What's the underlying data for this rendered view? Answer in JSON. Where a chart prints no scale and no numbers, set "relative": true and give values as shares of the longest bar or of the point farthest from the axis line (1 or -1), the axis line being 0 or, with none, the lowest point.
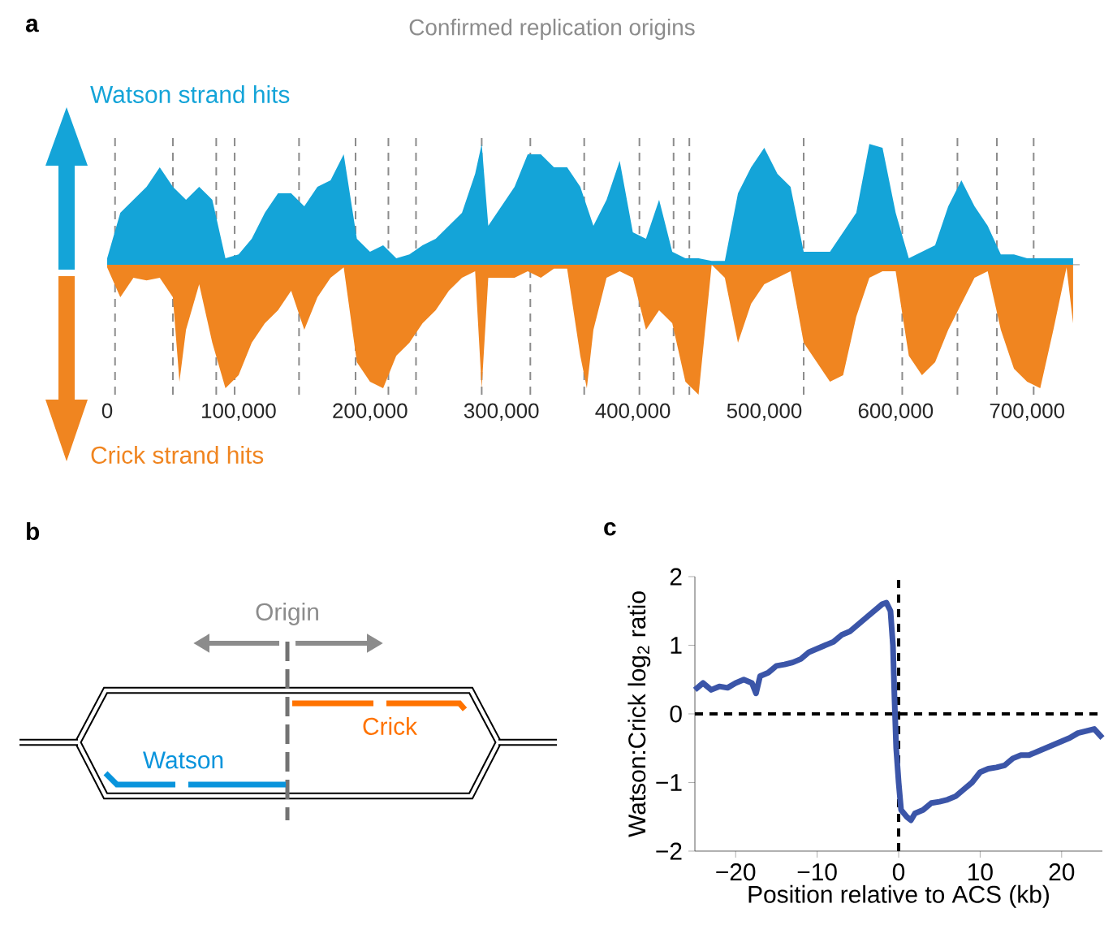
{
  "chart_data": [
    {
      "type": "area",
      "title": "a",
      "relative": true,
      "tick_labels": "x",
      "annotations": [
        "Confirmed replication origins"
      ],
      "xlim": [
        0,
        740000
      ],
      "xticks": [
        0,
        {
          "value": 100000,
          "label": "100,000"
        },
        {
          "value": 200000,
          "label": "200,000"
        },
        {
          "value": 300000,
          "label": "300,000"
        },
        {
          "value": 400000,
          "label": "400,000"
        },
        {
          "value": 500000,
          "label": "500,000"
        },
        {
          "value": 600000,
          "label": "600,000"
        },
        {
          "value": 700000,
          "label": "700,000"
        }
      ],
      "ref_lines": [
        {
          "axis": "x",
          "value": 6000,
          "color": "#8c8c8c",
          "line_style": "dashed"
        },
        {
          "axis": "x",
          "value": 50000,
          "color": "#8c8c8c",
          "line_style": "dashed"
        },
        {
          "axis": "x",
          "value": 83000,
          "color": "#8c8c8c",
          "line_style": "dashed"
        },
        {
          "axis": "x",
          "value": 97000,
          "color": "#8c8c8c",
          "line_style": "dashed"
        },
        {
          "axis": "x",
          "value": 146000,
          "color": "#8c8c8c",
          "line_style": "dashed"
        },
        {
          "axis": "x",
          "value": 189000,
          "color": "#8c8c8c",
          "line_style": "dashed"
        },
        {
          "axis": "x",
          "value": 214000,
          "color": "#8c8c8c",
          "line_style": "dashed"
        },
        {
          "axis": "x",
          "value": 235000,
          "color": "#8c8c8c",
          "line_style": "dashed"
        },
        {
          "axis": "x",
          "value": 285000,
          "color": "#8c8c8c",
          "line_style": "dashed"
        },
        {
          "axis": "x",
          "value": 322000,
          "color": "#8c8c8c",
          "line_style": "dashed"
        },
        {
          "axis": "x",
          "value": 363000,
          "color": "#8c8c8c",
          "line_style": "dashed"
        },
        {
          "axis": "x",
          "value": 405000,
          "color": "#8c8c8c",
          "line_style": "dashed"
        },
        {
          "axis": "x",
          "value": 431000,
          "color": "#8c8c8c",
          "line_style": "dashed"
        },
        {
          "axis": "x",
          "value": 443000,
          "color": "#8c8c8c",
          "line_style": "dashed"
        },
        {
          "axis": "x",
          "value": 530000,
          "color": "#8c8c8c",
          "line_style": "dashed"
        },
        {
          "axis": "x",
          "value": 605000,
          "color": "#8c8c8c",
          "line_style": "dashed"
        },
        {
          "axis": "x",
          "value": 647000,
          "color": "#8c8c8c",
          "line_style": "dashed"
        },
        {
          "axis": "x",
          "value": 677000,
          "color": "#8c8c8c",
          "line_style": "dashed"
        },
        {
          "axis": "x",
          "value": 705000,
          "color": "#8c8c8c",
          "line_style": "dashed"
        }
      ],
      "series": [
        {
          "name": "Watson strand hits",
          "color": "#14a4d8",
          "x": [
            0,
            10000,
            20000,
            30000,
            40000,
            50000,
            60000,
            70000,
            80000,
            90000,
            100000,
            110000,
            120000,
            130000,
            140000,
            150000,
            160000,
            170000,
            180000,
            190000,
            200000,
            210000,
            220000,
            230000,
            240000,
            250000,
            260000,
            270000,
            280000,
            285000,
            290000,
            300000,
            310000,
            320000,
            330000,
            340000,
            350000,
            360000,
            370000,
            380000,
            390000,
            400000,
            410000,
            420000,
            430000,
            440000,
            450000,
            460000,
            470000,
            480000,
            490000,
            500000,
            510000,
            520000,
            530000,
            540000,
            550000,
            560000,
            570000,
            580000,
            590000,
            600000,
            610000,
            620000,
            630000,
            640000,
            650000,
            660000,
            670000,
            680000,
            690000,
            700000,
            710000,
            720000,
            730000,
            735000
          ],
          "values": [
            0.05,
            0.4,
            0.5,
            0.6,
            0.75,
            0.6,
            0.5,
            0.6,
            0.5,
            0.05,
            0.08,
            0.2,
            0.4,
            0.55,
            0.55,
            0.45,
            0.6,
            0.65,
            0.85,
            0.2,
            0.1,
            0.15,
            0.05,
            0.08,
            0.15,
            0.2,
            0.3,
            0.4,
            0.7,
            0.93,
            0.3,
            0.45,
            0.6,
            0.85,
            0.85,
            0.75,
            0.75,
            0.6,
            0.3,
            0.5,
            0.8,
            0.25,
            0.2,
            0.5,
            0.1,
            0.05,
            0.05,
            0.03,
            0.03,
            0.55,
            0.75,
            0.9,
            0.7,
            0.6,
            0.1,
            0.1,
            0.1,
            0.25,
            0.4,
            0.93,
            0.9,
            0.4,
            0.05,
            0.1,
            0.15,
            0.45,
            0.65,
            0.45,
            0.3,
            0.08,
            0.08,
            0.05,
            0.05,
            0.05,
            0.05,
            0.05
          ]
        },
        {
          "name": "Crick strand hits",
          "color": "#f08520",
          "x": [
            0,
            10000,
            20000,
            30000,
            40000,
            50000,
            55000,
            60000,
            70000,
            80000,
            90000,
            100000,
            110000,
            120000,
            130000,
            140000,
            150000,
            160000,
            170000,
            180000,
            190000,
            200000,
            210000,
            220000,
            230000,
            240000,
            250000,
            260000,
            270000,
            280000,
            285000,
            290000,
            300000,
            310000,
            320000,
            330000,
            340000,
            350000,
            360000,
            365000,
            370000,
            380000,
            390000,
            400000,
            410000,
            420000,
            430000,
            440000,
            450000,
            460000,
            470000,
            480000,
            490000,
            500000,
            510000,
            520000,
            530000,
            540000,
            550000,
            560000,
            570000,
            580000,
            590000,
            600000,
            610000,
            620000,
            630000,
            640000,
            650000,
            660000,
            670000,
            680000,
            690000,
            700000,
            710000,
            720000,
            730000,
            735000
          ],
          "values": [
            -0.02,
            -0.25,
            -0.1,
            -0.12,
            -0.1,
            -0.25,
            -0.9,
            -0.5,
            -0.15,
            -0.6,
            -0.95,
            -0.85,
            -0.6,
            -0.45,
            -0.35,
            -0.2,
            -0.5,
            -0.25,
            -0.1,
            -0.02,
            -0.75,
            -0.9,
            -0.95,
            -0.7,
            -0.6,
            -0.45,
            -0.35,
            -0.2,
            -0.1,
            -0.05,
            -0.95,
            -0.1,
            -0.1,
            -0.1,
            -0.05,
            -0.1,
            -0.03,
            -0.03,
            -0.7,
            -0.95,
            -0.5,
            -0.1,
            -0.05,
            -0.1,
            -0.5,
            -0.35,
            -0.45,
            -0.9,
            -1,
            0,
            -0.1,
            -0.6,
            -0.3,
            -0.15,
            -0.1,
            -0.05,
            -0.6,
            -0.75,
            -0.9,
            -0.85,
            -0.4,
            -0.1,
            -0.05,
            -0.05,
            -0.7,
            -0.85,
            -0.75,
            -0.5,
            -0.3,
            -0.1,
            -0.05,
            -0.5,
            -0.8,
            -0.9,
            -0.95,
            -0.5,
            -0.02,
            -0.45
          ]
        }
      ]
    },
    {
      "type": "other",
      "title": "b",
      "annotations": [
        "Origin",
        "Watson",
        "Crick"
      ]
    },
    {
      "type": "line",
      "title": "c",
      "xlabel": "Position relative to ACS (kb)",
      "ylabel": "Watson:Crick log$_{2}$ ratio",
      "xlim": [
        -25,
        25
      ],
      "ylim": [
        -2,
        2
      ],
      "xticks": [
        {
          "value": -20,
          "label": "−20"
        },
        {
          "value": -10,
          "label": "−10"
        },
        0,
        10,
        20
      ],
      "yticks": [
        {
          "value": -2,
          "label": "−2"
        },
        {
          "value": -1,
          "label": "−1"
        },
        0,
        1,
        2
      ],
      "ref_lines": [
        {
          "axis": "x",
          "value": 0,
          "color": "#000000",
          "line_style": "dashed"
        },
        {
          "axis": "y",
          "value": 0,
          "color": "#000000",
          "line_style": "dashed"
        }
      ],
      "series": [
        {
          "color": "#3b55a8",
          "x": [
            -25,
            -24,
            -23,
            -22,
            -21,
            -20,
            -19,
            -18,
            -17.5,
            -17,
            -16,
            -15,
            -14,
            -13,
            -12,
            -11,
            -10,
            -9,
            -8,
            -7,
            -6,
            -5,
            -4,
            -3,
            -2,
            -1.5,
            -1,
            -0.7,
            -0.5,
            -0.3,
            0,
            0.3,
            1,
            1.5,
            2,
            3,
            4,
            5,
            6,
            7,
            8,
            9,
            10,
            11,
            12,
            13,
            14,
            15,
            16,
            17,
            18,
            19,
            20,
            21,
            22,
            23,
            24,
            25
          ],
          "values": [
            0.35,
            0.45,
            0.35,
            0.4,
            0.38,
            0.45,
            0.5,
            0.45,
            0.3,
            0.55,
            0.6,
            0.7,
            0.72,
            0.75,
            0.8,
            0.9,
            0.95,
            1.0,
            1.05,
            1.15,
            1.2,
            1.3,
            1.4,
            1.5,
            1.6,
            1.62,
            1.5,
            1.0,
            0.2,
            -0.5,
            -1.0,
            -1.4,
            -1.5,
            -1.55,
            -1.45,
            -1.4,
            -1.3,
            -1.28,
            -1.25,
            -1.2,
            -1.1,
            -1.0,
            -0.85,
            -0.8,
            -0.78,
            -0.75,
            -0.65,
            -0.6,
            -0.6,
            -0.55,
            -0.5,
            -0.45,
            -0.4,
            -0.35,
            -0.28,
            -0.25,
            -0.22,
            -0.35
          ]
        }
      ]
    }
  ]
}
